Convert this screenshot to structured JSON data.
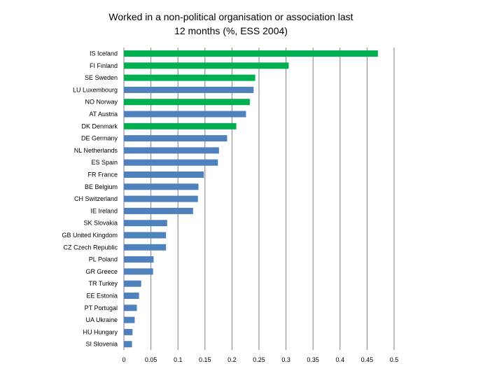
{
  "chart_data": {
    "type": "bar",
    "orientation": "horizontal",
    "title": "Worked in a non-political organisation or association last\n12 months (%, ESS 2004)",
    "categories": [
      "IS Iceland",
      "FI Finland",
      "SE Sweden",
      "LU Luxembourg",
      "NO Norway",
      "AT Austria",
      "DK Denmark",
      "DE Germany",
      "NL Netherlands",
      "ES Spain",
      "FR France",
      "BE Belgium",
      "CH Switzerland",
      "IE Ireland",
      "SK Slovakia",
      "GB United Kingdom",
      "CZ Czech Republic",
      "PL Poland",
      "GR Greece",
      "TR Turkey",
      "EE Estonia",
      "PT Portugal",
      "UA Ukraine",
      "HU Hungary",
      "SI Slovenia"
    ],
    "values": [
      0.47,
      0.305,
      0.243,
      0.24,
      0.233,
      0.226,
      0.208,
      0.191,
      0.176,
      0.174,
      0.148,
      0.138,
      0.137,
      0.128,
      0.08,
      0.078,
      0.078,
      0.055,
      0.054,
      0.032,
      0.028,
      0.024,
      0.02,
      0.016,
      0.015
    ],
    "highlight": [
      true,
      true,
      true,
      false,
      true,
      false,
      true,
      false,
      false,
      false,
      false,
      false,
      false,
      false,
      false,
      false,
      false,
      false,
      false,
      false,
      false,
      false,
      false,
      false,
      false
    ],
    "colors": {
      "highlight": "#00b050",
      "default": "#4f81bd",
      "grid": "#7f7f7f"
    },
    "xlim": [
      0,
      0.5
    ],
    "xticks": [
      "0",
      "0.05",
      "0.1",
      "0.15",
      "0.2",
      "0.25",
      "0.3",
      "0.35",
      "0.4",
      "0.45",
      "0.5"
    ],
    "grid": true,
    "xlabel": "",
    "ylabel": ""
  }
}
